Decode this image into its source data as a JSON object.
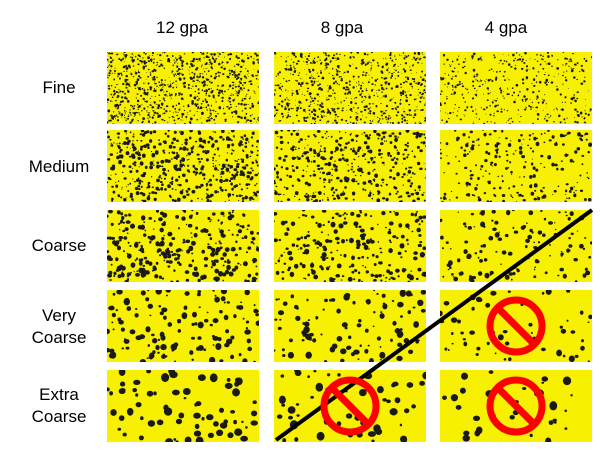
{
  "columns": [
    "12 gpa",
    "8 gpa",
    "4 gpa"
  ],
  "rows": [
    {
      "label_line1": "Fine",
      "label_line2": ""
    },
    {
      "label_line1": "Medium",
      "label_line2": ""
    },
    {
      "label_line1": "Coarse",
      "label_line2": ""
    },
    {
      "label_line1": "Very",
      "label_line2": "Coarse"
    },
    {
      "label_line1": "Extra",
      "label_line2": "Coarse"
    }
  ],
  "card_color": "#f7f000",
  "droplet_color": "#1a1a1a",
  "prohibited_cells": [
    {
      "row": 3,
      "col": 2,
      "icon": "no-symbol-icon"
    },
    {
      "row": 4,
      "col": 1,
      "icon": "no-symbol-icon"
    },
    {
      "row": 4,
      "col": 2,
      "icon": "no-symbol-icon"
    }
  ],
  "no_symbol_color": "#ff0000",
  "diagonal_line": "cutoff-line"
}
